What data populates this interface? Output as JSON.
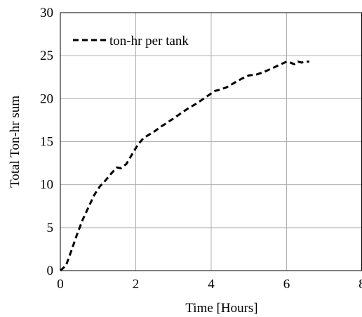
{
  "chart_data": {
    "type": "line",
    "xlabel": "Time [Hours]",
    "ylabel": "Total Ton-hr sum",
    "xlim": [
      0,
      8
    ],
    "ylim": [
      0,
      30
    ],
    "x_ticks": [
      "0",
      "2",
      "4",
      "6",
      "8"
    ],
    "y_ticks": [
      "0",
      "5",
      "10",
      "15",
      "20",
      "25",
      "30"
    ],
    "grid": true,
    "legend_position": "top-left",
    "series": [
      {
        "name": "ton-hr per tank",
        "line_style": "dashed",
        "color": "#000000",
        "x": [
          0,
          0.15,
          0.3,
          0.45,
          0.6,
          0.75,
          0.9,
          1.05,
          1.2,
          1.35,
          1.5,
          1.6,
          1.75,
          1.9,
          2.05,
          2.2,
          2.35,
          2.5,
          2.65,
          2.8,
          3.0,
          3.2,
          3.4,
          3.6,
          3.8,
          4.0,
          4.1,
          4.2,
          4.4,
          4.6,
          4.8,
          5.0,
          5.2,
          5.4,
          5.6,
          5.8,
          6.0,
          6.1,
          6.2,
          6.3,
          6.4,
          6.5,
          6.6
        ],
        "y": [
          0,
          0.6,
          2.4,
          4.3,
          6.0,
          7.4,
          8.8,
          9.8,
          10.5,
          11.3,
          12.0,
          11.9,
          12.4,
          13.5,
          14.6,
          15.4,
          15.8,
          16.2,
          16.7,
          17.1,
          17.7,
          18.3,
          18.9,
          19.4,
          20.0,
          20.6,
          20.9,
          21.0,
          21.3,
          21.8,
          22.3,
          22.7,
          22.8,
          23.1,
          23.5,
          23.9,
          24.3,
          24.2,
          24.0,
          24.3,
          24.2,
          24.3,
          24.3
        ]
      }
    ]
  }
}
